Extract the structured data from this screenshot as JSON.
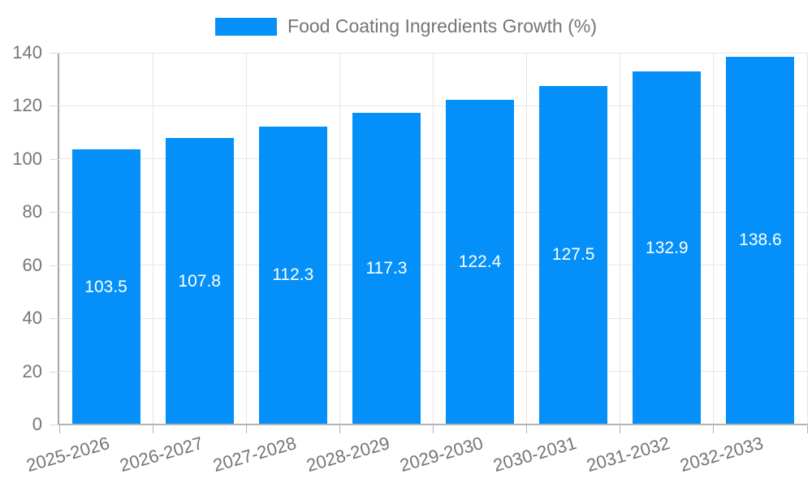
{
  "legend": {
    "label": "Food Coating Ingredients Growth (%)"
  },
  "chart_data": {
    "type": "bar",
    "title": "Food Coating Ingredients Growth (%)",
    "categories": [
      "2025-2026",
      "2026-2027",
      "2027-2028",
      "2028-2029",
      "2029-2030",
      "2030-2031",
      "2031-2032",
      "2032-2033"
    ],
    "values": [
      103.5,
      107.8,
      112.3,
      117.3,
      122.4,
      127.5,
      132.9,
      138.6
    ],
    "value_labels": [
      "103.5",
      "107.8",
      "112.3",
      "117.3",
      "122.4",
      "127.5",
      "132.9",
      "138.6"
    ],
    "xlabel": "",
    "ylabel": "",
    "ylim": [
      0,
      140
    ],
    "yticks": [
      0,
      20,
      40,
      60,
      80,
      100,
      120,
      140
    ],
    "grid": true,
    "legend_position": "top",
    "value_label_position": "inside-center",
    "x_label_rotation_deg": -16,
    "bar_color": "#0590f9",
    "bar_label_color": "#ffffff",
    "axis_text_color": "#757575",
    "grid_color": "#e6e6e6",
    "axis_line_color": "#a6a6a6"
  }
}
